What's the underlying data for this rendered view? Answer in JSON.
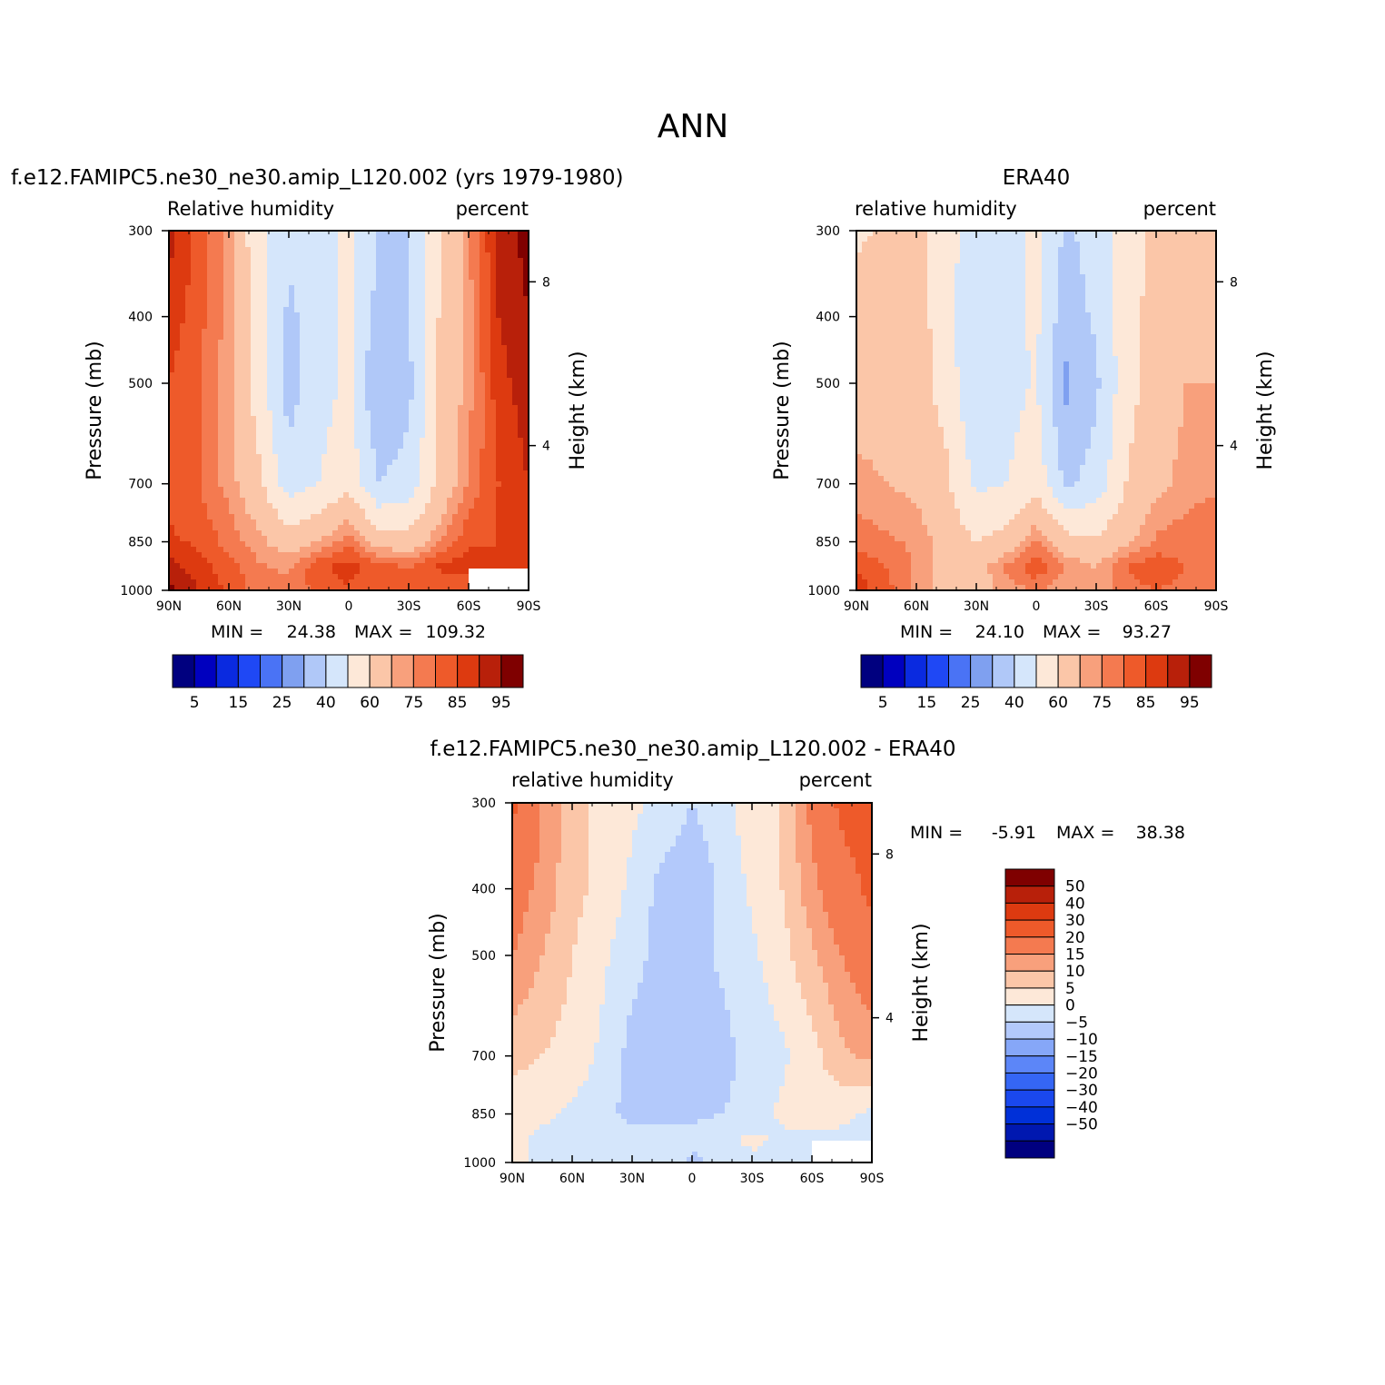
{
  "page": {
    "title": "ANN"
  },
  "colors": {
    "abs_levels": [
      "#00007f",
      "#0000bf",
      "#0a2ae0",
      "#1f48f5",
      "#4a73f5",
      "#7fa0f0",
      "#b0c8f8",
      "#d5e6fb",
      "#fde8d8",
      "#fbc6a8",
      "#f8a07c",
      "#f47a50",
      "#ee5a2a",
      "#dd3a10",
      "#b8200a",
      "#7f0000"
    ],
    "diff_levels": [
      "#00007f",
      "#0018b0",
      "#0030d8",
      "#1a48ee",
      "#3566f5",
      "#5c86f8",
      "#86a7f8",
      "#b3c9fb",
      "#d5e6fb",
      "#fde8d8",
      "#fbc6a8",
      "#f8a07c",
      "#f47a50",
      "#ee5a2a",
      "#dd3a10",
      "#b8200a",
      "#7f0000"
    ],
    "no_data": "#ffffff"
  },
  "chart_data": [
    {
      "type": "heatmap",
      "id": "model",
      "title": "f.e12.FAMIPC5.ne30_ne30.amip_L120.002 (yrs 1979-1980)",
      "left_label": "Relative humidity",
      "right_label": "percent",
      "xlabel": "",
      "ylabel": "Pressure (mb)",
      "y2label": "Height (km)",
      "x_ticks": [
        "90N",
        "60N",
        "30N",
        "0",
        "30S",
        "60S",
        "90S"
      ],
      "x_values": [
        90,
        60,
        30,
        0,
        -30,
        -60,
        -90
      ],
      "y_ticks": [
        "300",
        "400",
        "500",
        "700",
        "850",
        "1000"
      ],
      "y_values": [
        300,
        400,
        500,
        700,
        850,
        1000
      ],
      "y2_ticks": [
        "8",
        "4"
      ],
      "xlim": [
        90,
        -90
      ],
      "ylim": [
        1000,
        300
      ],
      "y_scale": "log",
      "min_label": "MIN =",
      "min_value": "24.38",
      "max_label": "MAX =",
      "max_value": "109.32",
      "levels": [
        5,
        10,
        15,
        20,
        25,
        30,
        40,
        50,
        60,
        70,
        75,
        80,
        85,
        90,
        95
      ],
      "colorbar_labels": [
        "5",
        "15",
        "25",
        "40",
        "60",
        "75",
        "85",
        "95"
      ],
      "grid_lat": [
        90,
        75,
        60,
        45,
        30,
        15,
        0,
        -15,
        -30,
        -45,
        -60,
        -75,
        -90
      ],
      "grid_p": [
        300,
        400,
        500,
        700,
        850,
        925,
        1000
      ],
      "values": [
        [
          92,
          83,
          73,
          52,
          42,
          45,
          53,
          40,
          40,
          58,
          74,
          92,
          97
        ],
        [
          88,
          82,
          73,
          55,
          38,
          45,
          52,
          36,
          40,
          60,
          73,
          90,
          95
        ],
        [
          85,
          80,
          72,
          55,
          35,
          46,
          52,
          30,
          37,
          60,
          73,
          88,
          93
        ],
        [
          83,
          80,
          73,
          62,
          45,
          50,
          57,
          40,
          44,
          62,
          76,
          85,
          90
        ],
        [
          86,
          84,
          78,
          72,
          65,
          70,
          78,
          66,
          64,
          74,
          84,
          85,
          87
        ],
        [
          92,
          87,
          82,
          76,
          74,
          84,
          88,
          82,
          80,
          86,
          88,
          85,
          85
        ],
        [
          97,
          90,
          84,
          78,
          76,
          82,
          84,
          80,
          80,
          80,
          80,
          80,
          80
        ]
      ]
    },
    {
      "type": "heatmap",
      "id": "obs",
      "title": "ERA40",
      "left_label": "relative humidity",
      "right_label": "percent",
      "xlabel": "",
      "ylabel": "Pressure (mb)",
      "y2label": "Height (km)",
      "x_ticks": [
        "90N",
        "60N",
        "30N",
        "0",
        "30S",
        "60S",
        "90S"
      ],
      "x_values": [
        90,
        60,
        30,
        0,
        -30,
        -60,
        -90
      ],
      "y_ticks": [
        "300",
        "400",
        "500",
        "700",
        "850",
        "1000"
      ],
      "y_values": [
        300,
        400,
        500,
        700,
        850,
        1000
      ],
      "y2_ticks": [
        "8",
        "4"
      ],
      "xlim": [
        90,
        -90
      ],
      "ylim": [
        1000,
        300
      ],
      "y_scale": "log",
      "min_label": "MIN =",
      "min_value": "24.10",
      "max_label": "MAX =",
      "max_value": "93.27",
      "levels": [
        5,
        10,
        15,
        20,
        25,
        30,
        40,
        50,
        60,
        70,
        75,
        80,
        85,
        90,
        95
      ],
      "colorbar_labels": [
        "5",
        "15",
        "25",
        "40",
        "60",
        "75",
        "85",
        "95"
      ],
      "grid_lat": [
        90,
        75,
        60,
        45,
        30,
        15,
        0,
        -15,
        -30,
        -45,
        -60,
        -75,
        -90
      ],
      "grid_p": [
        300,
        400,
        500,
        700,
        850,
        925,
        1000
      ],
      "values": [
        [
          58,
          62,
          62,
          55,
          42,
          45,
          52,
          38,
          45,
          55,
          62,
          62,
          60
        ],
        [
          65,
          65,
          64,
          55,
          40,
          46,
          52,
          34,
          42,
          56,
          64,
          66,
          66
        ],
        [
          66,
          66,
          64,
          56,
          40,
          46,
          51,
          28,
          38,
          56,
          65,
          70,
          70
        ],
        [
          72,
          70,
          68,
          62,
          48,
          50,
          56,
          38,
          44,
          60,
          68,
          72,
          74
        ],
        [
          78,
          76,
          74,
          66,
          60,
          64,
          76,
          64,
          62,
          68,
          76,
          78,
          80
        ],
        [
          84,
          80,
          74,
          66,
          66,
          76,
          84,
          74,
          70,
          80,
          84,
          80,
          80
        ],
        [
          88,
          82,
          74,
          66,
          66,
          72,
          76,
          72,
          70,
          78,
          80,
          78,
          78
        ]
      ]
    },
    {
      "type": "heatmap",
      "id": "diff",
      "title": "f.e12.FAMIPC5.ne30_ne30.amip_L120.002 - ERA40",
      "left_label": "relative humidity",
      "right_label": "percent",
      "xlabel": "",
      "ylabel": "Pressure (mb)",
      "y2label": "Height (km)",
      "x_ticks": [
        "90N",
        "60N",
        "30N",
        "0",
        "30S",
        "60S",
        "90S"
      ],
      "x_values": [
        90,
        60,
        30,
        0,
        -30,
        -60,
        -90
      ],
      "y_ticks": [
        "300",
        "400",
        "500",
        "700",
        "850",
        "1000"
      ],
      "y_values": [
        300,
        400,
        500,
        700,
        850,
        1000
      ],
      "y2_ticks": [
        "8",
        "4"
      ],
      "xlim": [
        90,
        -90
      ],
      "ylim": [
        1000,
        300
      ],
      "y_scale": "log",
      "min_label": "MIN =",
      "min_value": "-5.91",
      "max_label": "MAX =",
      "max_value": "38.38",
      "levels": [
        -50,
        -40,
        -30,
        -20,
        -15,
        -10,
        -5,
        0,
        5,
        10,
        15,
        20,
        30,
        40,
        50
      ],
      "colorbar_labels": [
        "50",
        "40",
        "30",
        "20",
        "15",
        "10",
        "5",
        "0",
        "−5",
        "−10",
        "−15",
        "−20",
        "−30",
        "−40",
        "−50"
      ],
      "grid_lat": [
        90,
        75,
        60,
        45,
        30,
        15,
        0,
        -15,
        -30,
        -45,
        -60,
        -75,
        -90
      ],
      "grid_p": [
        300,
        400,
        500,
        700,
        850,
        925,
        1000
      ],
      "values": [
        [
          32,
          20,
          12,
          8,
          6,
          4,
          0,
          3,
          8,
          10,
          22,
          32,
          36
        ],
        [
          24,
          18,
          12,
          8,
          4,
          -2,
          -4,
          1,
          6,
          10,
          18,
          26,
          32
        ],
        [
          20,
          15,
          10,
          6,
          2,
          -2,
          -2,
          1,
          4,
          8,
          14,
          20,
          26
        ],
        [
          12,
          10,
          8,
          4,
          -2,
          -3,
          -2,
          -2,
          2,
          4,
          8,
          14,
          16
        ],
        [
          6,
          6,
          4,
          2,
          -2,
          -2,
          -1,
          0,
          2,
          6,
          8,
          6,
          4
        ],
        [
          6,
          4,
          2,
          3,
          2,
          3,
          1,
          4,
          6,
          4,
          3,
          4,
          4
        ],
        [
          7,
          3,
          3,
          4,
          4,
          3,
          -1,
          1,
          4,
          4,
          4,
          4,
          4
        ]
      ]
    }
  ]
}
